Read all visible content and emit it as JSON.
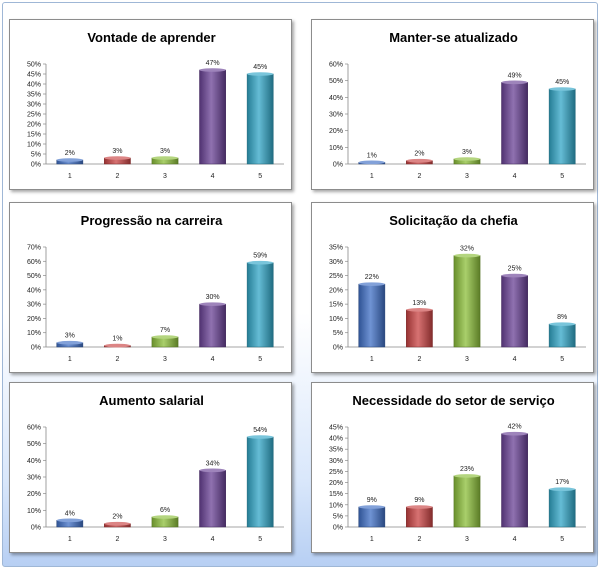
{
  "chart_data": [
    {
      "type": "bar",
      "title": "Vontade de aprender",
      "categories": [
        "1",
        "2",
        "3",
        "4",
        "5"
      ],
      "values": [
        2,
        3,
        3,
        47,
        45
      ],
      "data_labels": [
        "2%",
        "3%",
        "3%",
        "47%",
        "45%"
      ],
      "ylim": [
        0,
        50
      ],
      "yticks": [
        "0%",
        "5%",
        "10%",
        "15%",
        "20%",
        "25%",
        "30%",
        "35%",
        "40%",
        "45%",
        "50%"
      ],
      "colors": [
        "#3f6fc5",
        "#c94343",
        "#8cbf3a",
        "#6a4296",
        "#31a6c7"
      ]
    },
    {
      "type": "bar",
      "title": "Manter-se atualizado",
      "categories": [
        "1",
        "2",
        "3",
        "4",
        "5"
      ],
      "values": [
        1,
        2,
        3,
        49,
        45
      ],
      "data_labels": [
        "1%",
        "2%",
        "3%",
        "49%",
        "45%"
      ],
      "ylim": [
        0,
        60
      ],
      "yticks": [
        "0%",
        "10%",
        "20%",
        "30%",
        "40%",
        "50%",
        "60%"
      ],
      "colors": [
        "#3f6fc5",
        "#c94343",
        "#8cbf3a",
        "#6a4296",
        "#31a6c7"
      ]
    },
    {
      "type": "bar",
      "title": "Progressão na carreira",
      "categories": [
        "1",
        "2",
        "3",
        "4",
        "5"
      ],
      "values": [
        3,
        1,
        7,
        30,
        59
      ],
      "data_labels": [
        "3%",
        "1%",
        "7%",
        "30%",
        "59%"
      ],
      "ylim": [
        0,
        70
      ],
      "yticks": [
        "0%",
        "10%",
        "20%",
        "30%",
        "40%",
        "50%",
        "60%",
        "70%"
      ],
      "colors": [
        "#3f6fc5",
        "#c94343",
        "#8cbf3a",
        "#6a4296",
        "#31a6c7"
      ]
    },
    {
      "type": "bar",
      "title": "Solicitação da chefia",
      "categories": [
        "1",
        "2",
        "3",
        "4",
        "5"
      ],
      "values": [
        22,
        13,
        32,
        25,
        8
      ],
      "data_labels": [
        "22%",
        "13%",
        "32%",
        "25%",
        "8%"
      ],
      "ylim": [
        0,
        35
      ],
      "yticks": [
        "0%",
        "5%",
        "10%",
        "15%",
        "20%",
        "25%",
        "30%",
        "35%"
      ],
      "colors": [
        "#3f6fc5",
        "#c94343",
        "#8cbf3a",
        "#6a4296",
        "#31a6c7"
      ]
    },
    {
      "type": "bar",
      "title": "Aumento salarial",
      "categories": [
        "1",
        "2",
        "3",
        "4",
        "5"
      ],
      "values": [
        4,
        2,
        6,
        34,
        54
      ],
      "data_labels": [
        "4%",
        "2%",
        "6%",
        "34%",
        "54%"
      ],
      "ylim": [
        0,
        60
      ],
      "yticks": [
        "0%",
        "10%",
        "20%",
        "30%",
        "40%",
        "50%",
        "60%"
      ],
      "colors": [
        "#3f6fc5",
        "#c94343",
        "#8cbf3a",
        "#6a4296",
        "#31a6c7"
      ]
    },
    {
      "type": "bar",
      "title": "Necessidade do setor de serviço",
      "categories": [
        "1",
        "2",
        "3",
        "4",
        "5"
      ],
      "values": [
        9,
        9,
        23,
        42,
        17
      ],
      "data_labels": [
        "9%",
        "9%",
        "23%",
        "42%",
        "17%"
      ],
      "ylim": [
        0,
        45
      ],
      "yticks": [
        "0%",
        "5%",
        "10%",
        "15%",
        "20%",
        "25%",
        "30%",
        "35%",
        "40%",
        "45%"
      ],
      "colors": [
        "#3f6fc5",
        "#c94343",
        "#8cbf3a",
        "#6a4296",
        "#31a6c7"
      ]
    }
  ]
}
